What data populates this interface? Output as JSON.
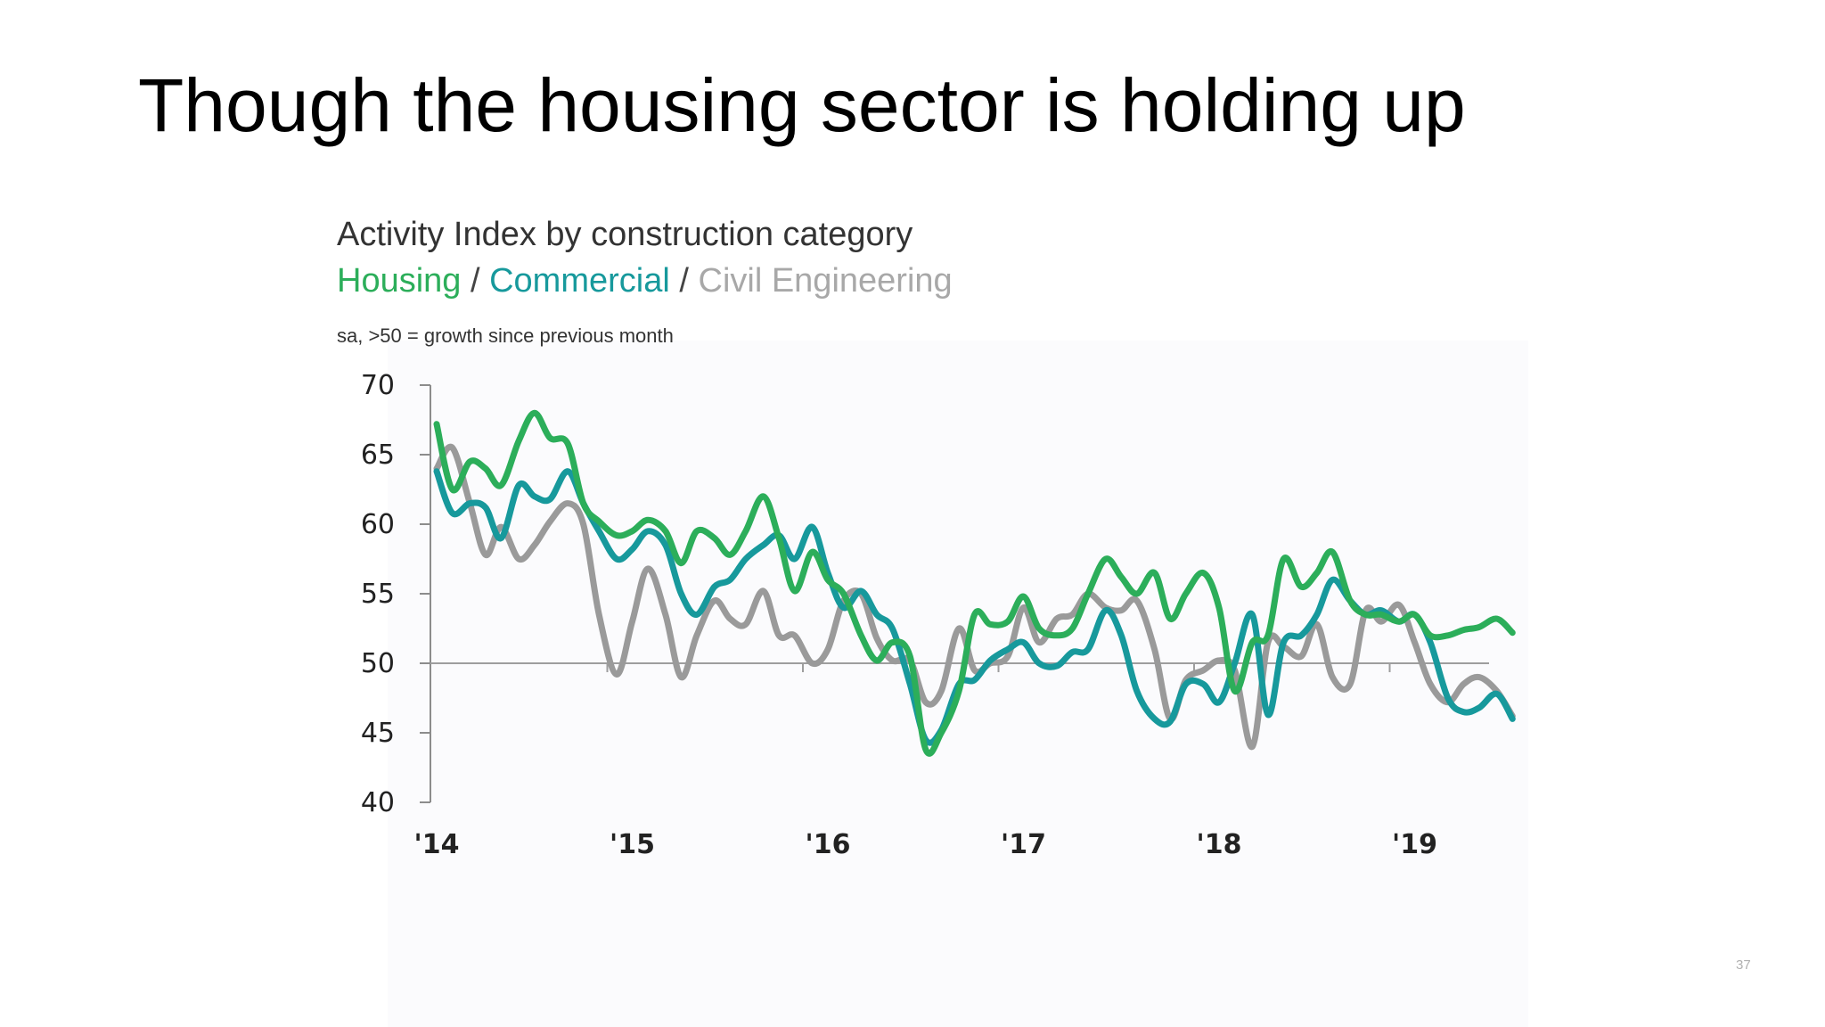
{
  "slide": {
    "title": "Though the housing sector is holding up",
    "page_number": "37"
  },
  "chart_data": {
    "type": "line",
    "title": "Activity Index by construction category",
    "subtitle_parts": [
      "Housing",
      " / ",
      "Commercial",
      " / ",
      "Civil Engineering"
    ],
    "note": "sa, >50 = growth since previous month",
    "xlabel": "",
    "ylabel": "",
    "ylim": [
      40,
      70
    ],
    "y_ticks": [
      "70",
      "65",
      "60",
      "55",
      "50",
      "45",
      "40"
    ],
    "x_ticks": [
      "'14",
      "'15",
      "'16",
      "'17",
      "'18",
      "'19"
    ],
    "reference_line": 50,
    "grid": false,
    "legend": "subtitle",
    "series": [
      {
        "name": "Housing",
        "color": "#2cae5a",
        "points": [
          [
            2014.0,
            67.2
          ],
          [
            2014.08,
            62.5
          ],
          [
            2014.17,
            64.5
          ],
          [
            2014.25,
            64.0
          ],
          [
            2014.33,
            62.8
          ],
          [
            2014.42,
            66.0
          ],
          [
            2014.5,
            68.0
          ],
          [
            2014.58,
            66.2
          ],
          [
            2014.67,
            65.8
          ],
          [
            2014.75,
            61.5
          ],
          [
            2014.83,
            60.2
          ],
          [
            2014.92,
            59.2
          ],
          [
            2015.0,
            59.5
          ],
          [
            2015.08,
            60.3
          ],
          [
            2015.17,
            59.5
          ],
          [
            2015.25,
            57.2
          ],
          [
            2015.33,
            59.5
          ],
          [
            2015.42,
            59.0
          ],
          [
            2015.5,
            57.8
          ],
          [
            2015.58,
            59.5
          ],
          [
            2015.67,
            62.0
          ],
          [
            2015.75,
            59.0
          ],
          [
            2015.83,
            55.2
          ],
          [
            2015.92,
            58.0
          ],
          [
            2016.0,
            56.0
          ],
          [
            2016.08,
            55.0
          ],
          [
            2016.17,
            52.0
          ],
          [
            2016.25,
            50.2
          ],
          [
            2016.33,
            51.5
          ],
          [
            2016.42,
            50.5
          ],
          [
            2016.5,
            43.8
          ],
          [
            2016.58,
            45.0
          ],
          [
            2016.67,
            48.0
          ],
          [
            2016.75,
            53.5
          ],
          [
            2016.83,
            52.8
          ],
          [
            2016.92,
            53.0
          ],
          [
            2017.0,
            54.8
          ],
          [
            2017.08,
            52.5
          ],
          [
            2017.17,
            52.0
          ],
          [
            2017.25,
            52.5
          ],
          [
            2017.33,
            55.0
          ],
          [
            2017.42,
            57.5
          ],
          [
            2017.5,
            56.2
          ],
          [
            2017.58,
            55.0
          ],
          [
            2017.67,
            56.5
          ],
          [
            2017.75,
            53.2
          ],
          [
            2017.83,
            55.0
          ],
          [
            2017.92,
            56.5
          ],
          [
            2018.0,
            54.0
          ],
          [
            2018.08,
            48.0
          ],
          [
            2018.17,
            51.5
          ],
          [
            2018.25,
            52.0
          ],
          [
            2018.33,
            57.5
          ],
          [
            2018.42,
            55.5
          ],
          [
            2018.5,
            56.5
          ],
          [
            2018.58,
            58.0
          ],
          [
            2018.67,
            54.5
          ],
          [
            2018.75,
            53.5
          ],
          [
            2018.83,
            53.5
          ],
          [
            2018.92,
            53.0
          ],
          [
            2019.0,
            53.5
          ],
          [
            2019.08,
            52.0
          ],
          [
            2019.17,
            52.0
          ],
          [
            2019.25,
            52.4
          ],
          [
            2019.33,
            52.6
          ],
          [
            2019.42,
            53.2
          ],
          [
            2019.5,
            52.2
          ]
        ]
      },
      {
        "name": "Commercial",
        "color": "#17999c",
        "points": [
          [
            2014.0,
            63.8
          ],
          [
            2014.08,
            60.8
          ],
          [
            2014.17,
            61.5
          ],
          [
            2014.25,
            61.2
          ],
          [
            2014.33,
            59.0
          ],
          [
            2014.42,
            62.8
          ],
          [
            2014.5,
            62.0
          ],
          [
            2014.58,
            61.8
          ],
          [
            2014.67,
            63.8
          ],
          [
            2014.75,
            61.5
          ],
          [
            2014.83,
            59.5
          ],
          [
            2014.92,
            57.5
          ],
          [
            2015.0,
            58.2
          ],
          [
            2015.08,
            59.5
          ],
          [
            2015.17,
            58.5
          ],
          [
            2015.25,
            55.0
          ],
          [
            2015.33,
            53.5
          ],
          [
            2015.42,
            55.5
          ],
          [
            2015.5,
            56.0
          ],
          [
            2015.58,
            57.5
          ],
          [
            2015.67,
            58.5
          ],
          [
            2015.75,
            59.2
          ],
          [
            2015.83,
            57.5
          ],
          [
            2015.92,
            59.8
          ],
          [
            2016.0,
            56.5
          ],
          [
            2016.08,
            54.0
          ],
          [
            2016.17,
            55.2
          ],
          [
            2016.25,
            53.5
          ],
          [
            2016.33,
            52.5
          ],
          [
            2016.42,
            48.5
          ],
          [
            2016.5,
            44.5
          ],
          [
            2016.58,
            45.2
          ],
          [
            2016.67,
            48.5
          ],
          [
            2016.75,
            48.8
          ],
          [
            2016.83,
            50.2
          ],
          [
            2016.92,
            51.0
          ],
          [
            2017.0,
            51.5
          ],
          [
            2017.08,
            50.0
          ],
          [
            2017.17,
            49.8
          ],
          [
            2017.25,
            50.8
          ],
          [
            2017.33,
            51.0
          ],
          [
            2017.42,
            53.8
          ],
          [
            2017.5,
            52.0
          ],
          [
            2017.58,
            48.0
          ],
          [
            2017.67,
            46.0
          ],
          [
            2017.75,
            45.8
          ],
          [
            2017.83,
            48.5
          ],
          [
            2017.92,
            48.5
          ],
          [
            2018.0,
            47.2
          ],
          [
            2018.08,
            50.0
          ],
          [
            2018.17,
            53.5
          ],
          [
            2018.25,
            46.3
          ],
          [
            2018.33,
            51.5
          ],
          [
            2018.42,
            52.0
          ],
          [
            2018.5,
            53.5
          ],
          [
            2018.58,
            56.0
          ],
          [
            2018.67,
            54.5
          ],
          [
            2018.75,
            53.5
          ],
          [
            2018.83,
            53.8
          ],
          [
            2018.92,
            53.0
          ],
          [
            2019.0,
            53.5
          ],
          [
            2019.08,
            51.5
          ],
          [
            2019.17,
            47.5
          ],
          [
            2019.25,
            46.5
          ],
          [
            2019.33,
            46.8
          ],
          [
            2019.42,
            47.8
          ],
          [
            2019.5,
            46.0
          ]
        ]
      },
      {
        "name": "Civil Engineering",
        "color": "#9a9a9a",
        "points": [
          [
            2014.0,
            64.0
          ],
          [
            2014.08,
            65.5
          ],
          [
            2014.17,
            61.5
          ],
          [
            2014.25,
            57.8
          ],
          [
            2014.33,
            59.8
          ],
          [
            2014.42,
            57.5
          ],
          [
            2014.5,
            58.5
          ],
          [
            2014.58,
            60.2
          ],
          [
            2014.67,
            61.5
          ],
          [
            2014.75,
            60.0
          ],
          [
            2014.83,
            53.5
          ],
          [
            2014.92,
            49.2
          ],
          [
            2015.0,
            53.0
          ],
          [
            2015.08,
            56.8
          ],
          [
            2015.17,
            53.5
          ],
          [
            2015.25,
            49.0
          ],
          [
            2015.33,
            52.0
          ],
          [
            2015.42,
            54.5
          ],
          [
            2015.5,
            53.2
          ],
          [
            2015.58,
            52.8
          ],
          [
            2015.67,
            55.2
          ],
          [
            2015.75,
            52.0
          ],
          [
            2015.83,
            52.0
          ],
          [
            2015.92,
            50.0
          ],
          [
            2016.0,
            51.0
          ],
          [
            2016.08,
            54.5
          ],
          [
            2016.17,
            55.0
          ],
          [
            2016.25,
            51.8
          ],
          [
            2016.33,
            50.2
          ],
          [
            2016.42,
            50.2
          ],
          [
            2016.5,
            47.2
          ],
          [
            2016.58,
            48.0
          ],
          [
            2016.67,
            52.5
          ],
          [
            2016.75,
            49.5
          ],
          [
            2016.83,
            50.0
          ],
          [
            2016.92,
            50.5
          ],
          [
            2017.0,
            54.0
          ],
          [
            2017.08,
            51.5
          ],
          [
            2017.17,
            53.2
          ],
          [
            2017.25,
            53.5
          ],
          [
            2017.33,
            55.0
          ],
          [
            2017.42,
            54.0
          ],
          [
            2017.5,
            53.8
          ],
          [
            2017.58,
            54.5
          ],
          [
            2017.67,
            51.0
          ],
          [
            2017.75,
            46.0
          ],
          [
            2017.83,
            48.8
          ],
          [
            2017.92,
            49.5
          ],
          [
            2018.0,
            50.2
          ],
          [
            2018.08,
            49.5
          ],
          [
            2018.17,
            44.0
          ],
          [
            2018.25,
            51.5
          ],
          [
            2018.33,
            51.2
          ],
          [
            2018.42,
            50.5
          ],
          [
            2018.5,
            52.8
          ],
          [
            2018.58,
            49.0
          ],
          [
            2018.67,
            48.5
          ],
          [
            2018.75,
            53.8
          ],
          [
            2018.83,
            53.0
          ],
          [
            2018.92,
            54.2
          ],
          [
            2019.0,
            51.5
          ],
          [
            2019.08,
            48.5
          ],
          [
            2019.17,
            47.2
          ],
          [
            2019.25,
            48.5
          ],
          [
            2019.33,
            49.0
          ],
          [
            2019.42,
            48.0
          ],
          [
            2019.5,
            46.2
          ]
        ]
      }
    ]
  }
}
